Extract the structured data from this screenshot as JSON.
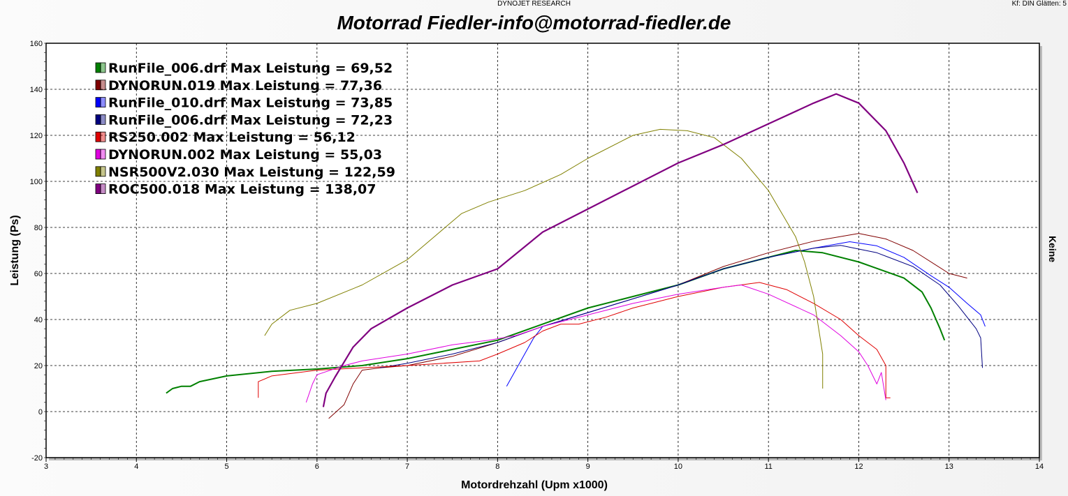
{
  "header": {
    "center": "DYNOJET RESEARCH",
    "right": "Kf: DIN  Glätten: 5"
  },
  "right_label": "Keine",
  "chart_data": {
    "type": "line",
    "title": "Motorrad Fiedler-info@motorrad-fiedler.de",
    "xlabel": "Motordrehzahl (Upm x1000)",
    "ylabel": "Leistung (Ps)",
    "xlim": [
      3,
      14
    ],
    "ylim": [
      -20,
      160
    ],
    "xticks": [
      3,
      4,
      5,
      6,
      7,
      8,
      9,
      10,
      11,
      12,
      13,
      14
    ],
    "yticks": [
      -20,
      0,
      20,
      40,
      60,
      80,
      100,
      120,
      140,
      160
    ],
    "grid": true,
    "legend": "top-left",
    "series": [
      {
        "name": "RunFile_006.drf Max Leistung = 69,52",
        "color": "#008000",
        "width": 2,
        "points": [
          [
            4.33,
            8
          ],
          [
            4.4,
            10
          ],
          [
            4.5,
            11
          ],
          [
            4.6,
            11
          ],
          [
            4.7,
            13
          ],
          [
            5,
            15.5
          ],
          [
            5.5,
            17.5
          ],
          [
            6,
            18.5
          ],
          [
            6.5,
            20
          ],
          [
            7,
            23
          ],
          [
            7.5,
            27
          ],
          [
            8,
            31
          ],
          [
            8.5,
            38
          ],
          [
            9,
            45
          ],
          [
            9.5,
            50
          ],
          [
            10,
            55
          ],
          [
            10.5,
            62
          ],
          [
            11,
            67
          ],
          [
            11.3,
            70
          ],
          [
            11.6,
            69
          ],
          [
            12,
            65
          ],
          [
            12.5,
            58
          ],
          [
            12.7,
            52
          ],
          [
            12.8,
            45
          ],
          [
            12.9,
            36
          ],
          [
            12.95,
            31
          ]
        ]
      },
      {
        "name": "DYNORUN.019 Max Leistung = 77,36",
        "color": "#800000",
        "width": 1,
        "points": [
          [
            6.13,
            -3
          ],
          [
            6.3,
            3
          ],
          [
            6.4,
            12
          ],
          [
            6.5,
            18
          ],
          [
            6.7,
            19
          ],
          [
            7,
            20
          ],
          [
            7.5,
            24
          ],
          [
            8,
            30
          ],
          [
            8.5,
            37
          ],
          [
            9,
            43
          ],
          [
            9.5,
            49
          ],
          [
            10,
            55
          ],
          [
            10.5,
            63
          ],
          [
            11,
            69
          ],
          [
            11.5,
            74
          ],
          [
            12,
            77.4
          ],
          [
            12.3,
            75
          ],
          [
            12.6,
            70
          ],
          [
            13,
            60
          ],
          [
            13.2,
            58
          ]
        ]
      },
      {
        "name": "RunFile_010.drf Max Leistung = 73,85",
        "color": "#0000ff",
        "width": 1,
        "points": [
          [
            8.1,
            11
          ],
          [
            8.2,
            18
          ],
          [
            8.3,
            25
          ],
          [
            8.4,
            32
          ],
          [
            8.5,
            37
          ],
          [
            9,
            43
          ],
          [
            9.5,
            49
          ],
          [
            10,
            55
          ],
          [
            10.5,
            62
          ],
          [
            11,
            67
          ],
          [
            11.5,
            71
          ],
          [
            11.9,
            73.8
          ],
          [
            12.2,
            72
          ],
          [
            12.5,
            67
          ],
          [
            12.8,
            59
          ],
          [
            13,
            54
          ],
          [
            13.2,
            47
          ],
          [
            13.35,
            42
          ],
          [
            13.4,
            37
          ]
        ]
      },
      {
        "name": "RunFile_006.drf Max Leistung = 72,23",
        "color": "#000080",
        "width": 1,
        "points": [
          [
            6.7,
            19
          ],
          [
            7,
            21
          ],
          [
            7.5,
            25
          ],
          [
            8,
            30
          ],
          [
            8.5,
            37
          ],
          [
            9,
            43
          ],
          [
            9.5,
            49
          ],
          [
            10,
            55
          ],
          [
            10.5,
            62
          ],
          [
            11,
            67
          ],
          [
            11.5,
            71
          ],
          [
            11.8,
            72.2
          ],
          [
            12.2,
            69
          ],
          [
            12.6,
            63
          ],
          [
            12.9,
            55
          ],
          [
            13.1,
            46
          ],
          [
            13.3,
            36
          ],
          [
            13.35,
            32
          ],
          [
            13.37,
            19
          ]
        ]
      },
      {
        "name": "RS250.002 Max Leistung = 56,12",
        "color": "#e00000",
        "width": 1,
        "points": [
          [
            5.35,
            6
          ],
          [
            5.35,
            13
          ],
          [
            5.5,
            15.5
          ],
          [
            6,
            18
          ],
          [
            6.5,
            19
          ],
          [
            7,
            20
          ],
          [
            7.4,
            21
          ],
          [
            7.8,
            22
          ],
          [
            8,
            25
          ],
          [
            8.3,
            30
          ],
          [
            8.5,
            35
          ],
          [
            8.7,
            38
          ],
          [
            8.9,
            38
          ],
          [
            9.2,
            41
          ],
          [
            9.5,
            45
          ],
          [
            10,
            50
          ],
          [
            10.5,
            54
          ],
          [
            10.9,
            56.1
          ],
          [
            11.2,
            53
          ],
          [
            11.5,
            47
          ],
          [
            11.8,
            40
          ],
          [
            12,
            33
          ],
          [
            12.2,
            27
          ],
          [
            12.3,
            20
          ],
          [
            12.3,
            6
          ],
          [
            12.35,
            6
          ]
        ]
      },
      {
        "name": "DYNORUN.002 Max Leistung = 55,03",
        "color": "#e000e0",
        "width": 1,
        "points": [
          [
            5.88,
            4
          ],
          [
            5.95,
            12
          ],
          [
            6,
            16
          ],
          [
            6.3,
            20
          ],
          [
            6.5,
            22
          ],
          [
            7,
            25
          ],
          [
            7.5,
            29
          ],
          [
            7.9,
            31
          ],
          [
            8.2,
            33
          ],
          [
            8.5,
            37
          ],
          [
            9,
            42
          ],
          [
            9.5,
            47
          ],
          [
            10,
            51
          ],
          [
            10.5,
            54
          ],
          [
            10.7,
            55
          ],
          [
            11,
            51
          ],
          [
            11.5,
            42
          ],
          [
            11.8,
            33
          ],
          [
            12,
            26
          ],
          [
            12.1,
            20
          ],
          [
            12.2,
            12
          ],
          [
            12.25,
            17
          ],
          [
            12.3,
            5
          ]
        ]
      },
      {
        "name": "NSR500V2.030 Max Leistung = 122,59",
        "color": "#808000",
        "width": 1,
        "points": [
          [
            5.42,
            33
          ],
          [
            5.5,
            38
          ],
          [
            5.7,
            44
          ],
          [
            6,
            47
          ],
          [
            6.5,
            55
          ],
          [
            7,
            66
          ],
          [
            7.3,
            76
          ],
          [
            7.6,
            86
          ],
          [
            7.9,
            91
          ],
          [
            8.3,
            96
          ],
          [
            8.7,
            103
          ],
          [
            9,
            110
          ],
          [
            9.5,
            120
          ],
          [
            9.8,
            122.6
          ],
          [
            10.1,
            122
          ],
          [
            10.4,
            119
          ],
          [
            10.7,
            110
          ],
          [
            11,
            96
          ],
          [
            11.3,
            76
          ],
          [
            11.4,
            65
          ],
          [
            11.5,
            50
          ],
          [
            11.6,
            25
          ],
          [
            11.6,
            10
          ]
        ]
      },
      {
        "name": "ROC500.018 Max Leistung = 138,07",
        "color": "#800080",
        "width": 2.2,
        "points": [
          [
            6.07,
            2
          ],
          [
            6.1,
            8
          ],
          [
            6.2,
            15
          ],
          [
            6.4,
            28
          ],
          [
            6.6,
            36
          ],
          [
            7,
            45
          ],
          [
            7.5,
            55
          ],
          [
            8,
            62
          ],
          [
            8.5,
            78
          ],
          [
            9,
            88
          ],
          [
            9.5,
            98
          ],
          [
            10,
            108
          ],
          [
            10.5,
            116
          ],
          [
            11,
            125
          ],
          [
            11.5,
            134
          ],
          [
            11.75,
            138
          ],
          [
            12,
            134
          ],
          [
            12.3,
            122
          ],
          [
            12.5,
            108
          ],
          [
            12.65,
            95
          ]
        ]
      }
    ]
  }
}
